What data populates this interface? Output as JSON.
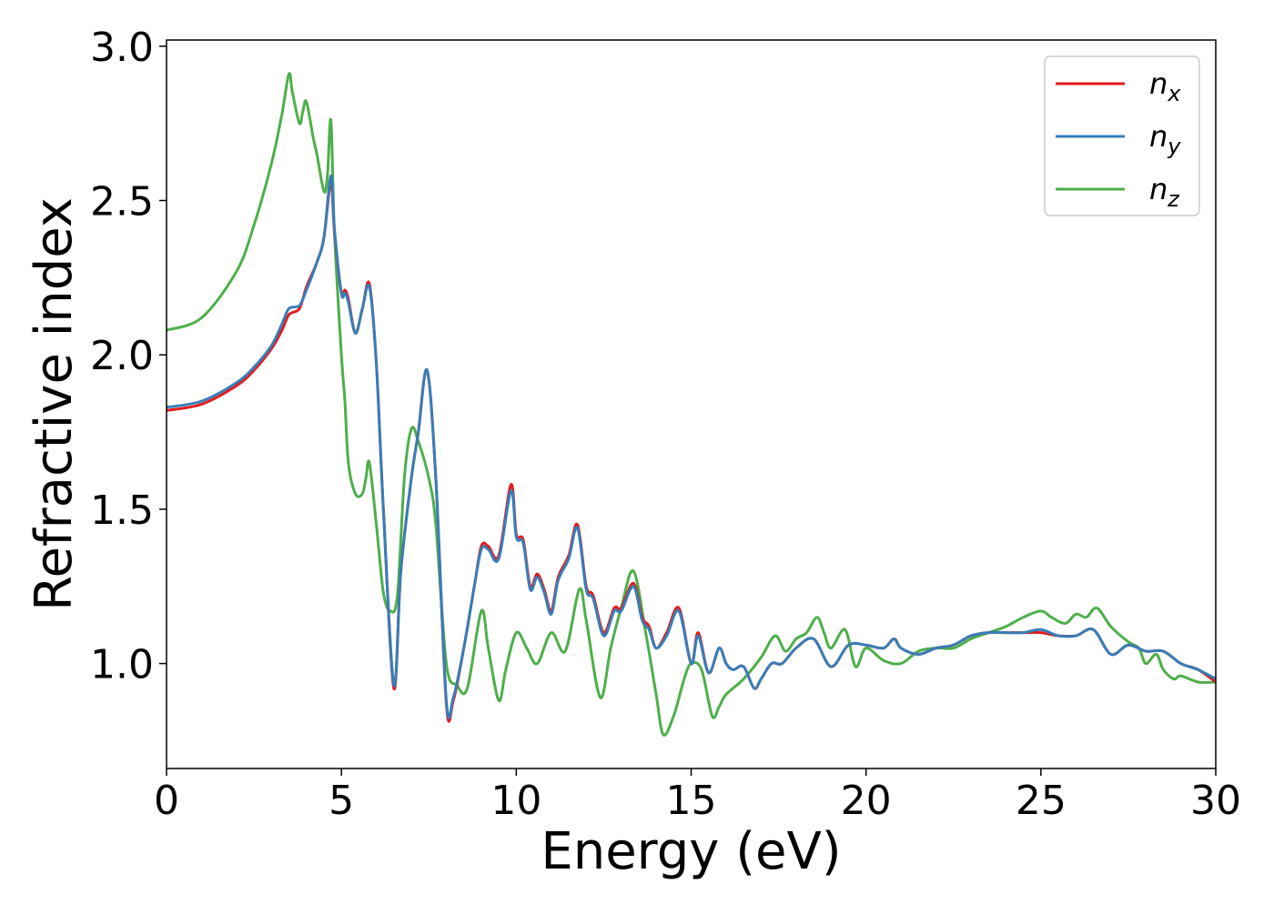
{
  "chart_data": {
    "type": "line",
    "xlabel": "Energy (eV)",
    "ylabel": "Refractive index",
    "xlim": [
      0,
      30
    ],
    "ylim": [
      0.66,
      3.02
    ],
    "xticks": [
      0,
      5,
      10,
      15,
      20,
      25,
      30
    ],
    "yticks": [
      1.0,
      1.5,
      2.0,
      2.5,
      3.0
    ],
    "xtick_labels": [
      "0",
      "5",
      "10",
      "15",
      "20",
      "25",
      "30"
    ],
    "ytick_labels": [
      "1.0",
      "1.5",
      "2.0",
      "2.5",
      "3.0"
    ],
    "grid": false,
    "legend_position": "top-right",
    "legend": [
      {
        "base": "n",
        "sub": "x"
      },
      {
        "base": "n",
        "sub": "y"
      },
      {
        "base": "n",
        "sub": "z"
      }
    ],
    "series": [
      {
        "name": "n_x",
        "color": "#e41a1c",
        "x": [
          0,
          1,
          2,
          2.5,
          3,
          3.3,
          3.5,
          3.8,
          4,
          4.3,
          4.5,
          4.7,
          4.8,
          5,
          5.1,
          5.2,
          5.4,
          5.6,
          5.8,
          6,
          6.2,
          6.5,
          6.7,
          7,
          7.2,
          7.45,
          7.7,
          8,
          8.2,
          8.5,
          8.8,
          9,
          9.2,
          9.5,
          9.85,
          10,
          10.2,
          10.4,
          10.6,
          10.8,
          11,
          11.2,
          11.5,
          11.75,
          12,
          12.2,
          12.5,
          12.8,
          13,
          13.35,
          13.6,
          13.8,
          14,
          14.3,
          14.65,
          15,
          15.2,
          15.5,
          15.8,
          16,
          16.2,
          16.5,
          16.8,
          17,
          17.3,
          17.6,
          18,
          18.5,
          19,
          19.5,
          20,
          20.5,
          20.8,
          21,
          21.5,
          22,
          22.5,
          23,
          23.5,
          24,
          24.5,
          25,
          25.5,
          26,
          26.5,
          27,
          27.5,
          28,
          28.5,
          29,
          29.5,
          30
        ],
        "y": [
          1.82,
          1.84,
          1.9,
          1.95,
          2.02,
          2.08,
          2.13,
          2.15,
          2.22,
          2.3,
          2.38,
          2.56,
          2.4,
          2.2,
          2.21,
          2.18,
          2.07,
          2.15,
          2.23,
          1.97,
          1.5,
          0.92,
          1.3,
          1.6,
          1.75,
          1.95,
          1.6,
          0.87,
          0.88,
          1.05,
          1.25,
          1.38,
          1.38,
          1.35,
          1.58,
          1.42,
          1.4,
          1.25,
          1.29,
          1.24,
          1.17,
          1.28,
          1.35,
          1.45,
          1.25,
          1.22,
          1.1,
          1.18,
          1.18,
          1.26,
          1.15,
          1.12,
          1.05,
          1.1,
          1.18,
          1.0,
          1.1,
          0.97,
          1.05,
          1.0,
          0.98,
          0.99,
          0.92,
          0.95,
          1.0,
          1.0,
          1.05,
          1.08,
          0.99,
          1.06,
          1.06,
          1.05,
          1.08,
          1.05,
          1.03,
          1.05,
          1.06,
          1.09,
          1.1,
          1.1,
          1.1,
          1.1,
          1.09,
          1.09,
          1.11,
          1.03,
          1.06,
          1.04,
          1.04,
          1.0,
          0.98,
          0.94
        ]
      },
      {
        "name": "n_y",
        "color": "#377eb8",
        "x": [
          0,
          1,
          2,
          2.5,
          3,
          3.3,
          3.5,
          3.8,
          4,
          4.3,
          4.5,
          4.7,
          4.8,
          5,
          5.1,
          5.2,
          5.4,
          5.6,
          5.8,
          6,
          6.2,
          6.5,
          6.7,
          7,
          7.2,
          7.45,
          7.7,
          8,
          8.2,
          8.5,
          8.8,
          9,
          9.2,
          9.5,
          9.85,
          10,
          10.2,
          10.4,
          10.6,
          10.8,
          11,
          11.2,
          11.5,
          11.75,
          12,
          12.2,
          12.5,
          12.8,
          13,
          13.35,
          13.6,
          13.8,
          14,
          14.3,
          14.65,
          15,
          15.2,
          15.5,
          15.8,
          16,
          16.2,
          16.5,
          16.8,
          17,
          17.3,
          17.6,
          18,
          18.5,
          19,
          19.5,
          20,
          20.5,
          20.8,
          21,
          21.5,
          22,
          22.5,
          23,
          23.5,
          24,
          24.5,
          25,
          25.5,
          26,
          26.5,
          27,
          27.5,
          28,
          28.5,
          29,
          29.5,
          30
        ],
        "y": [
          1.83,
          1.85,
          1.91,
          1.96,
          2.03,
          2.1,
          2.15,
          2.16,
          2.21,
          2.3,
          2.38,
          2.58,
          2.41,
          2.2,
          2.2,
          2.17,
          2.07,
          2.15,
          2.22,
          1.97,
          1.5,
          0.93,
          1.3,
          1.6,
          1.75,
          1.95,
          1.6,
          0.88,
          0.89,
          1.05,
          1.25,
          1.37,
          1.37,
          1.34,
          1.56,
          1.41,
          1.39,
          1.24,
          1.28,
          1.23,
          1.16,
          1.27,
          1.34,
          1.44,
          1.24,
          1.21,
          1.09,
          1.17,
          1.17,
          1.25,
          1.14,
          1.11,
          1.05,
          1.09,
          1.17,
          1.0,
          1.09,
          0.97,
          1.05,
          1.0,
          0.98,
          0.99,
          0.92,
          0.95,
          1.0,
          1.0,
          1.05,
          1.08,
          0.99,
          1.06,
          1.06,
          1.05,
          1.08,
          1.05,
          1.03,
          1.05,
          1.06,
          1.09,
          1.1,
          1.1,
          1.1,
          1.11,
          1.09,
          1.09,
          1.11,
          1.03,
          1.06,
          1.04,
          1.04,
          1.0,
          0.98,
          0.95
        ]
      },
      {
        "name": "n_z",
        "color": "#4daf4a",
        "x": [
          0,
          1,
          2,
          2.5,
          3,
          3.3,
          3.5,
          3.6,
          3.8,
          3.9,
          4.0,
          4.2,
          4.3,
          4.5,
          4.6,
          4.7,
          4.8,
          5.0,
          5.1,
          5.2,
          5.4,
          5.6,
          5.7,
          5.8,
          6.0,
          6.2,
          6.4,
          6.6,
          6.8,
          7.0,
          7.2,
          7.5,
          7.7,
          8.0,
          8.3,
          8.6,
          9.0,
          9.2,
          9.5,
          9.7,
          10.0,
          10.3,
          10.6,
          11.0,
          11.4,
          11.8,
          12.0,
          12.4,
          12.7,
          13.0,
          13.35,
          13.7,
          14.0,
          14.2,
          14.5,
          14.8,
          15.0,
          15.3,
          15.6,
          15.8,
          16.0,
          16.5,
          17.0,
          17.4,
          17.7,
          18.0,
          18.3,
          18.6,
          18.8,
          19.0,
          19.4,
          19.7,
          20.0,
          20.5,
          21.0,
          21.5,
          22.0,
          22.5,
          23.0,
          23.5,
          24.0,
          24.5,
          25.0,
          25.3,
          25.7,
          26.0,
          26.3,
          26.6,
          27.0,
          27.5,
          27.8,
          28.0,
          28.3,
          28.5,
          28.8,
          29.0,
          29.5,
          30.0
        ],
        "y": [
          2.08,
          2.12,
          2.27,
          2.42,
          2.62,
          2.78,
          2.91,
          2.85,
          2.75,
          2.79,
          2.82,
          2.7,
          2.65,
          2.53,
          2.58,
          2.76,
          2.4,
          2.0,
          1.85,
          1.65,
          1.55,
          1.55,
          1.6,
          1.65,
          1.45,
          1.23,
          1.17,
          1.22,
          1.6,
          1.76,
          1.72,
          1.6,
          1.45,
          1.0,
          0.93,
          0.92,
          1.17,
          1.05,
          0.88,
          0.98,
          1.1,
          1.05,
          1.0,
          1.1,
          1.04,
          1.24,
          1.14,
          0.89,
          1.05,
          1.18,
          1.3,
          1.1,
          0.9,
          0.77,
          0.83,
          0.95,
          1.0,
          0.98,
          0.83,
          0.86,
          0.9,
          0.95,
          1.02,
          1.09,
          1.04,
          1.08,
          1.1,
          1.15,
          1.1,
          1.05,
          1.11,
          0.99,
          1.05,
          1.01,
          1.0,
          1.04,
          1.05,
          1.05,
          1.08,
          1.1,
          1.12,
          1.15,
          1.17,
          1.15,
          1.13,
          1.16,
          1.15,
          1.18,
          1.12,
          1.07,
          1.05,
          1.0,
          1.03,
          0.98,
          0.95,
          0.96,
          0.94,
          0.94
        ]
      }
    ]
  }
}
